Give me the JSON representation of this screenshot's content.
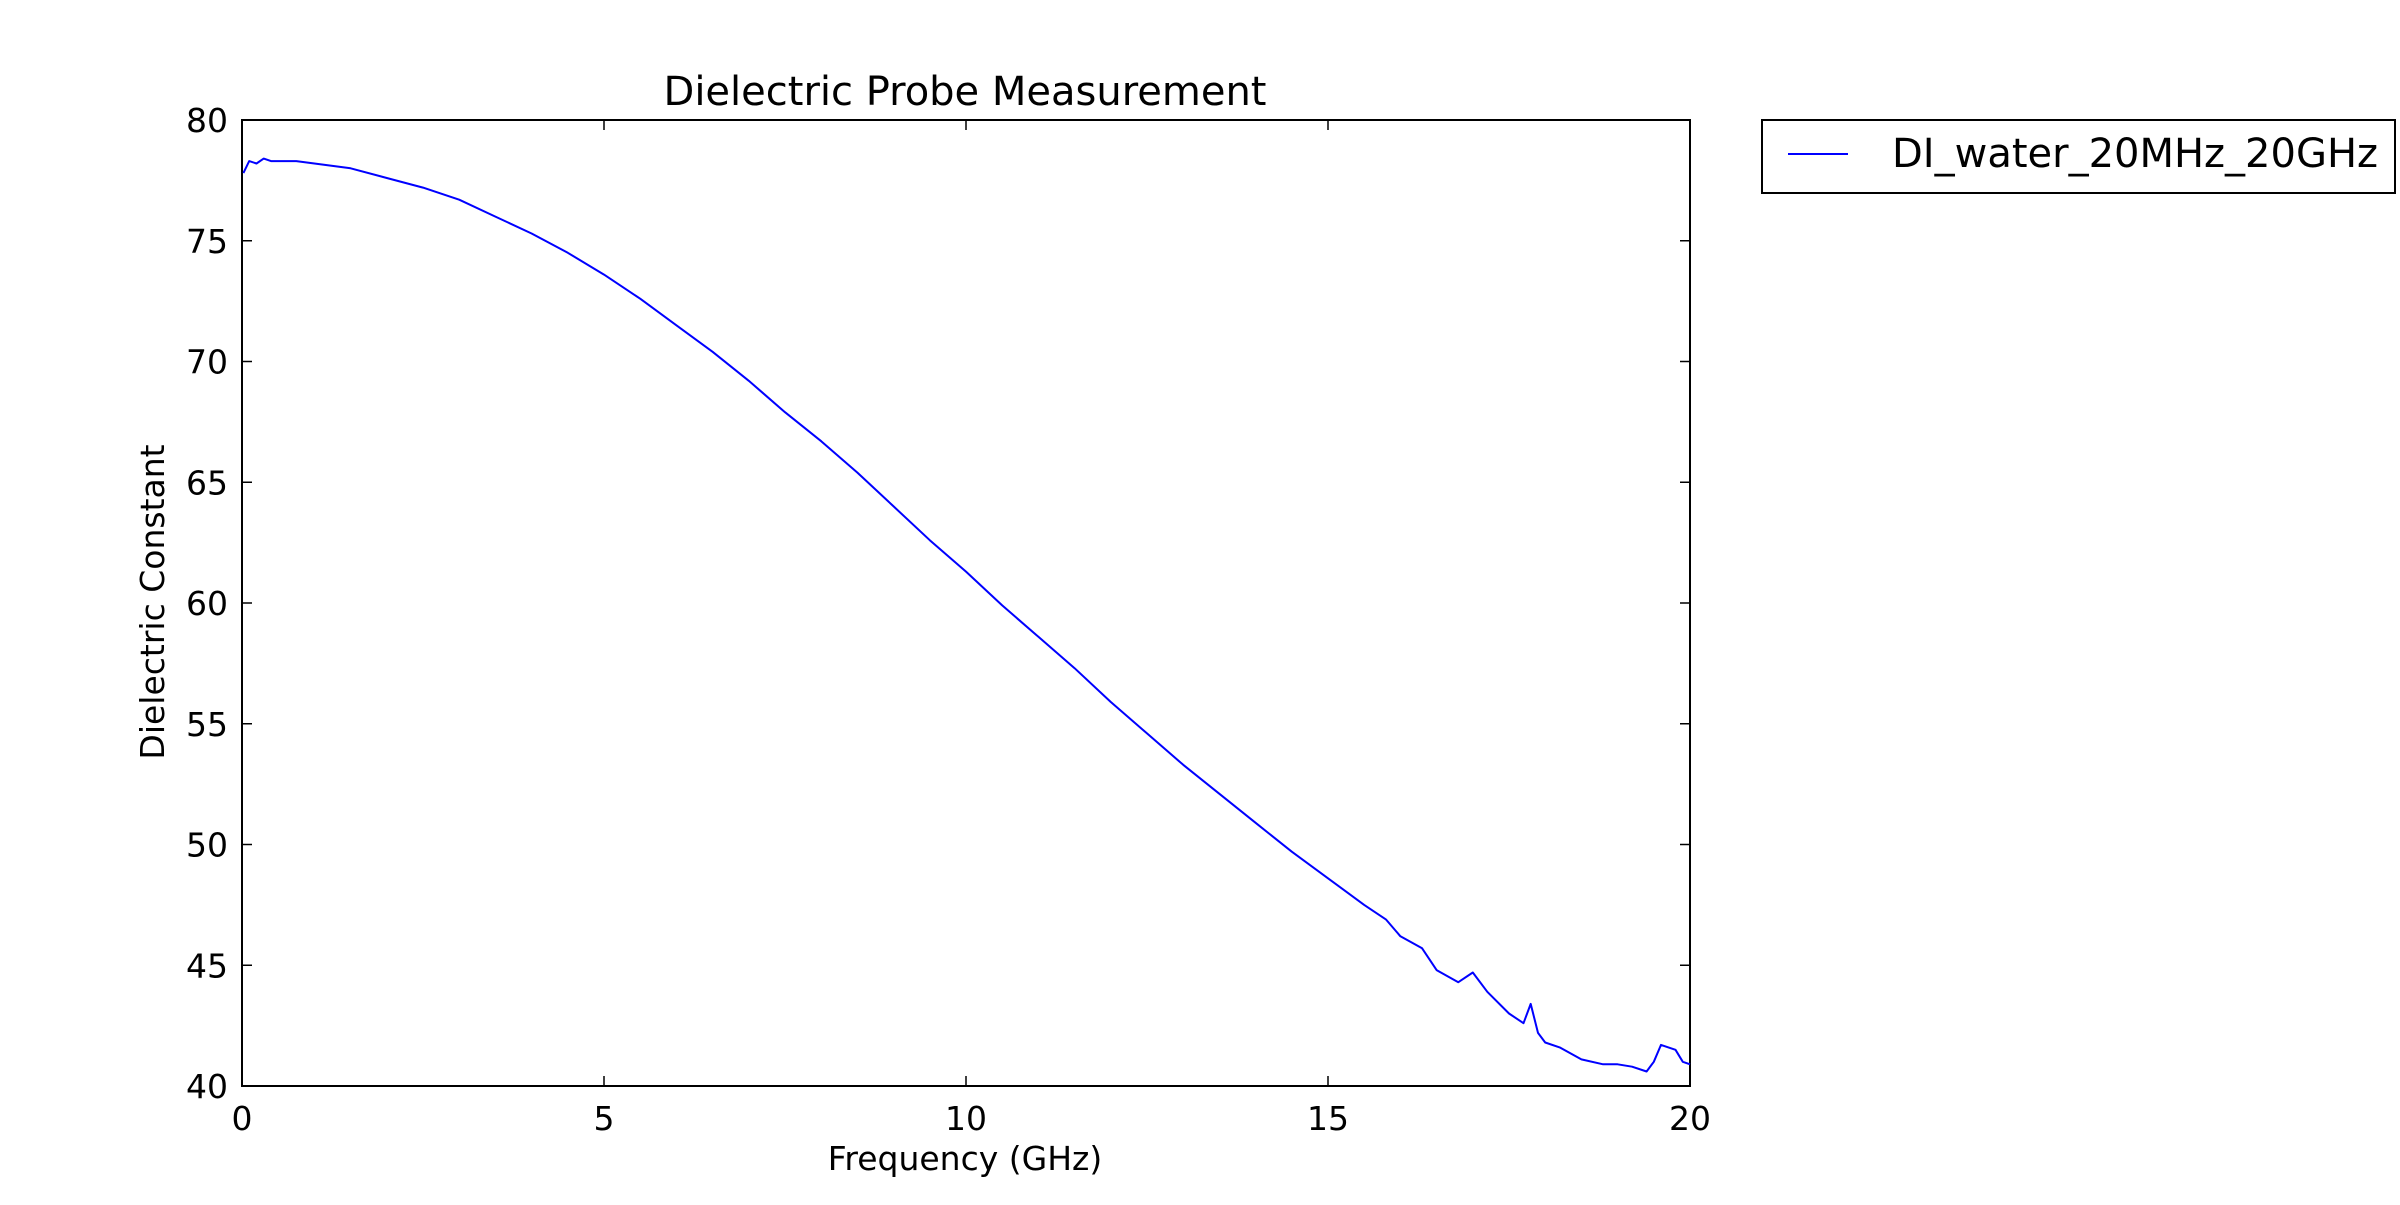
{
  "chart_data": {
    "type": "line",
    "title": "Dielectric Probe Measurement",
    "xlabel": "Frequency (GHz)",
    "ylabel": "Dielectric Constant",
    "xlim": [
      0,
      20
    ],
    "ylim": [
      40,
      80
    ],
    "x_ticks": [
      0,
      5,
      10,
      15,
      20
    ],
    "y_ticks": [
      40,
      45,
      50,
      55,
      60,
      65,
      70,
      75,
      80
    ],
    "grid": false,
    "legend": {
      "placement": "outside-top-right",
      "entries": [
        "DI_water_20MHz_20GHz"
      ]
    },
    "series": [
      {
        "name": "DI_water_20MHz_20GHz",
        "color": "#0000ff",
        "x": [
          0.02,
          0.1,
          0.2,
          0.3,
          0.4,
          0.5,
          0.75,
          1.0,
          1.25,
          1.5,
          2.0,
          2.5,
          3.0,
          3.5,
          4.0,
          4.5,
          5.0,
          5.5,
          6.0,
          6.5,
          7.0,
          7.5,
          8.0,
          8.5,
          9.0,
          9.5,
          10.0,
          10.5,
          11.0,
          11.5,
          12.0,
          12.5,
          13.0,
          13.5,
          14.0,
          14.5,
          15.0,
          15.5,
          15.8,
          16.0,
          16.3,
          16.5,
          16.8,
          17.0,
          17.2,
          17.5,
          17.7,
          17.8,
          17.9,
          18.0,
          18.2,
          18.5,
          18.8,
          19.0,
          19.2,
          19.4,
          19.5,
          19.6,
          19.8,
          19.9,
          20.0
        ],
        "y": [
          77.8,
          78.3,
          78.2,
          78.4,
          78.3,
          78.3,
          78.3,
          78.2,
          78.1,
          78.0,
          77.6,
          77.2,
          76.7,
          76.0,
          75.3,
          74.5,
          73.6,
          72.6,
          71.5,
          70.4,
          69.2,
          67.9,
          66.7,
          65.4,
          64.0,
          62.6,
          61.3,
          59.9,
          58.6,
          57.3,
          55.9,
          54.6,
          53.3,
          52.1,
          50.9,
          49.7,
          48.6,
          47.5,
          46.9,
          46.2,
          45.7,
          44.8,
          44.3,
          44.7,
          43.9,
          43.0,
          42.6,
          43.4,
          42.2,
          41.8,
          41.6,
          41.1,
          40.9,
          40.9,
          40.8,
          40.6,
          41.0,
          41.7,
          41.5,
          41.0,
          40.9
        ]
      }
    ]
  }
}
